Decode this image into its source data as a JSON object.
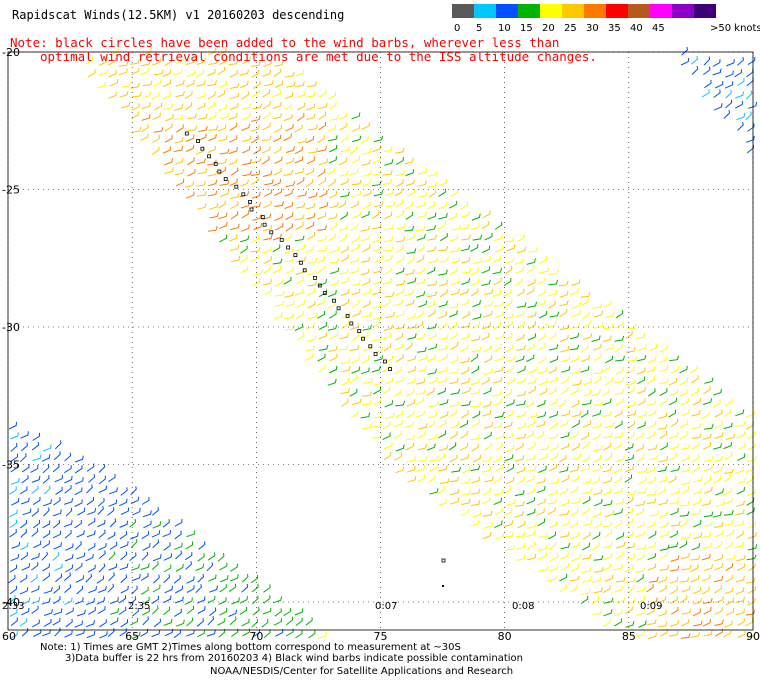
{
  "header": {
    "title": "Rapidscat Winds(12.5KM)  v1  20160203  descending",
    "note_line1": "Note: black circles have been added to the wind barbs, wherever less than",
    "note_line2": "optimal wind retrieval conditions are met due to the ISS altitude changes."
  },
  "color_scale": {
    "unit_label": ">50 knots",
    "bins": [
      {
        "label": "0",
        "color": "#5a5a5a"
      },
      {
        "label": "5",
        "color": "#00c8ff"
      },
      {
        "label": "10",
        "color": "#0050ff"
      },
      {
        "label": "15",
        "color": "#00b400"
      },
      {
        "label": "20",
        "color": "#ffff00"
      },
      {
        "label": "25",
        "color": "#ffc800"
      },
      {
        "label": "30",
        "color": "#ff7800"
      },
      {
        "label": "35",
        "color": "#ff0000"
      },
      {
        "label": "40",
        "color": "#b45a1e"
      },
      {
        "label": "45",
        "color": "#ff00ff"
      },
      {
        "label": "",
        "color": "#8c00c8"
      },
      {
        "label": "",
        "color": "#3c0078"
      }
    ]
  },
  "axes": {
    "lat_labels": [
      "-20",
      "-25",
      "-30",
      "-35",
      "-40"
    ],
    "lon_labels": [
      "60",
      "65",
      "70",
      "75",
      "80",
      "85",
      "90"
    ]
  },
  "pass_times": [
    "2:33",
    "2:35",
    "0:07",
    "0:08",
    "0:09"
  ],
  "footer": {
    "line1": "Note: 1) Times are GMT 2)Times along bottom correspond to measurement at ~30S",
    "line2": "3)Data buffer is 22 hrs from 20160203 4) Black wind barbs indicate possible contamination",
    "line3": "NOAA/NESDIS/Center for Satellite Applications and Research"
  }
}
